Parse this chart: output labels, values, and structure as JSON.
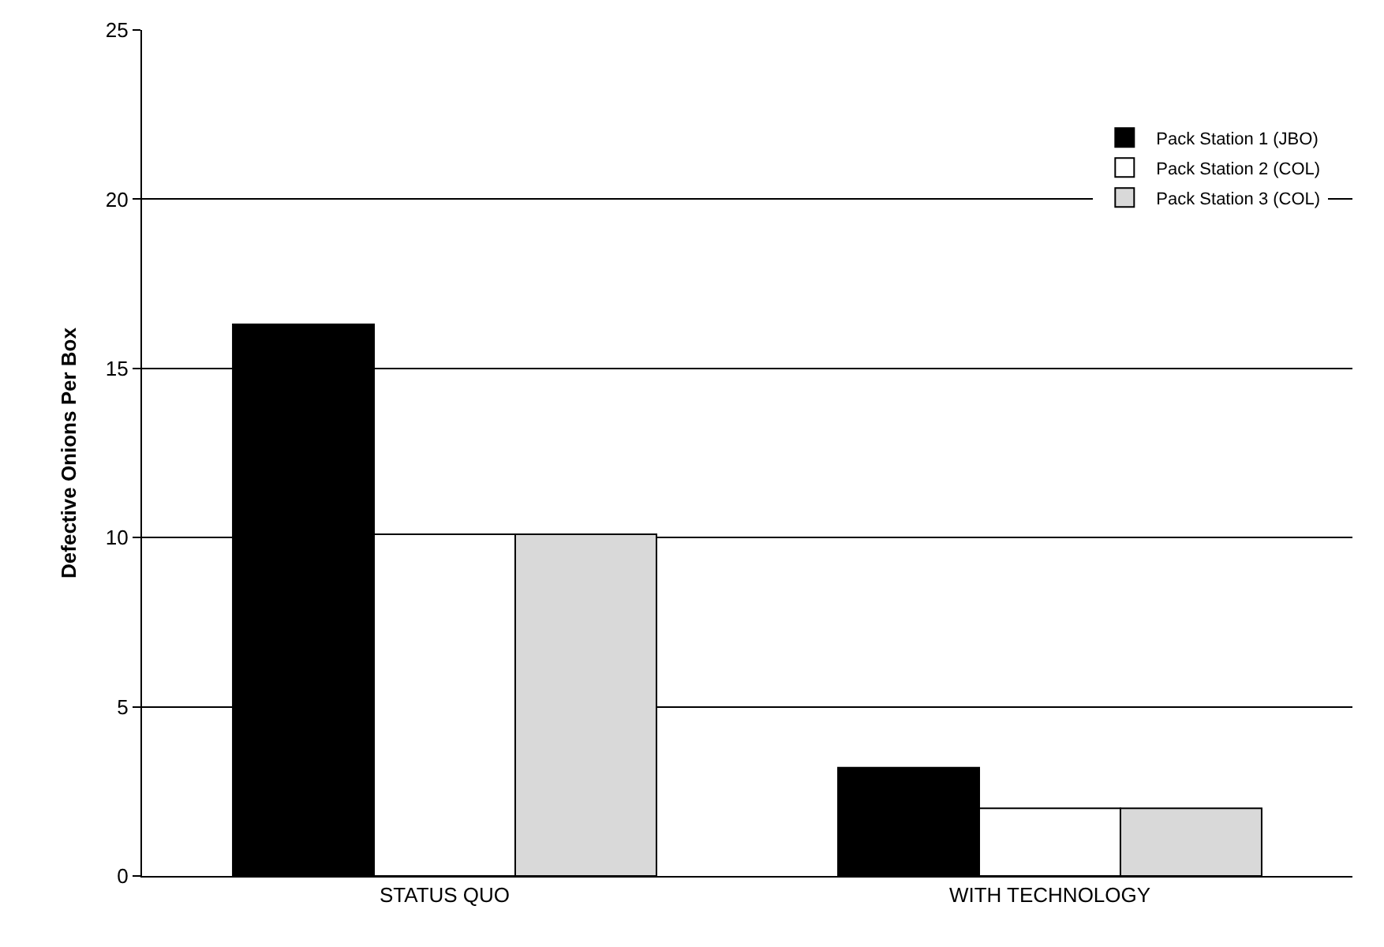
{
  "chart_data": {
    "type": "bar",
    "ylabel": "Defective Onions Per Box",
    "categories": [
      "STATUS QUO",
      "WITH TECHNOLOGY"
    ],
    "series": [
      {
        "name": "Pack Station 1 (JBO)",
        "color": "#000000",
        "values": [
          16.3,
          3.2
        ]
      },
      {
        "name": "Pack Station 2 (COL)",
        "color": "#ffffff",
        "values": [
          10.1,
          2.0
        ]
      },
      {
        "name": "Pack Station 3 (COL)",
        "color": "#d9d9d9",
        "values": [
          10.1,
          2.0
        ]
      }
    ],
    "ylim": [
      0,
      25
    ],
    "yticks": [
      0,
      5,
      10,
      15,
      20,
      25
    ],
    "grid": "y",
    "legend": "top right"
  }
}
